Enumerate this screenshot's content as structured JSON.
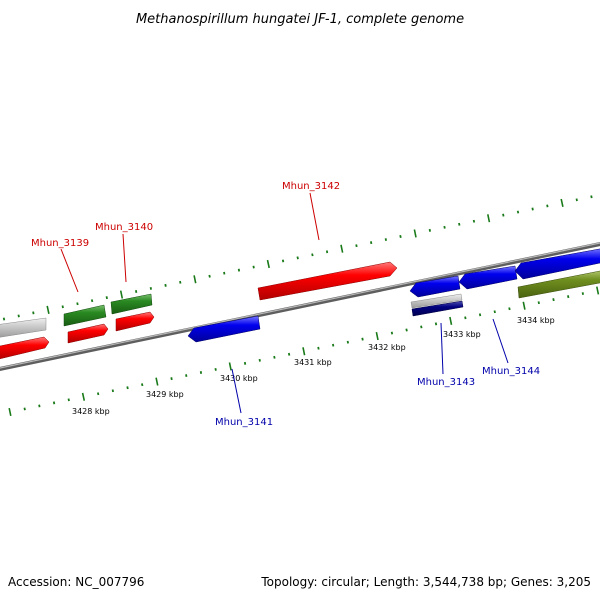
{
  "title": "Methanospirillum hungatei JF-1, complete genome",
  "footer": {
    "accession": "Accession: NC_007796",
    "summary": "Topology: circular; Length: 3,544,738 bp; Genes: 3,205"
  },
  "colors": {
    "forward_gene": "#ff0000",
    "reverse_gene": "#0000ee",
    "label_forward": "#cc0000",
    "label_reverse": "#0000aa",
    "rna_gene": "#2a8a22",
    "pseudo_gene": "#c8c8c8",
    "olive_gene": "#6f8f1f",
    "navy_gene": "#000080",
    "backbone": "#808080",
    "tick": "#1a7a1a"
  },
  "tick_labels": [
    "3428 kbp",
    "3429 kbp",
    "3430 kbp",
    "3431 kbp",
    "3432 kbp",
    "3433 kbp",
    "3434 kbp"
  ],
  "gene_labels": [
    {
      "id": "Mhun_3139",
      "strand": "forward"
    },
    {
      "id": "Mhun_3140",
      "strand": "forward"
    },
    {
      "id": "Mhun_3142",
      "strand": "forward"
    },
    {
      "id": "Mhun_3141",
      "strand": "reverse"
    },
    {
      "id": "Mhun_3143",
      "strand": "reverse"
    },
    {
      "id": "Mhun_3144",
      "strand": "reverse"
    }
  ]
}
